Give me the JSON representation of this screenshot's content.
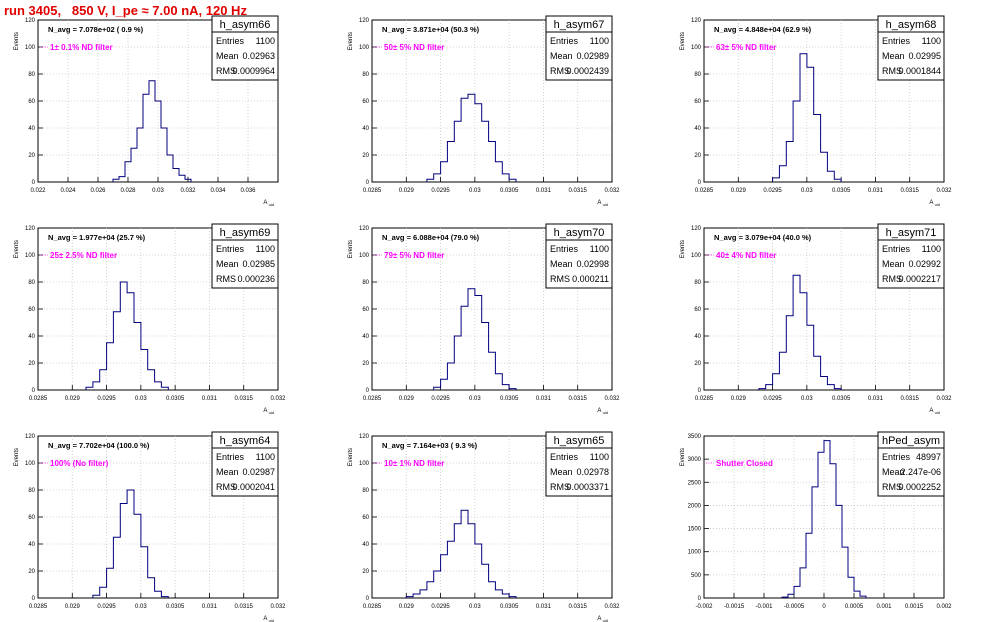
{
  "page": {
    "title": "run 3405,   850 V, I_pe ≈ 7.00 nA, 120 Hz"
  },
  "colors": {
    "title": "#e00000",
    "histogram": "#00007f",
    "filter_text": "#ff00ff",
    "grid": "#c8c8c8"
  },
  "chart_data": [
    {
      "type": "histogram",
      "stats": {
        "name": "h_asym66",
        "entries": "1100",
        "mean": "0.02963",
        "rms": "0.0009964"
      },
      "label": "N_avg = 7.078e+02 ( 0.9 %)",
      "filter": "1± 0.1% ND filter",
      "xlabel": "A_uid",
      "ylabel": "Events",
      "xlim": [
        0.022,
        0.038
      ],
      "ylim": [
        0,
        120
      ],
      "xticks": [
        "0.022",
        "0.024",
        "0.026",
        "0.028",
        "0.03",
        "0.032",
        "0.034",
        "0.036"
      ],
      "yticks": [
        "0",
        "20",
        "40",
        "60",
        "80",
        "100",
        "120"
      ],
      "centers": [
        0.0272,
        0.0276,
        0.028,
        0.0284,
        0.0288,
        0.0292,
        0.0296,
        0.03,
        0.0304,
        0.0308,
        0.0312,
        0.0316,
        0.032
      ],
      "values": [
        2,
        4,
        15,
        25,
        40,
        65,
        75,
        60,
        40,
        20,
        10,
        5,
        2
      ]
    },
    {
      "type": "histogram",
      "stats": {
        "name": "h_asym67",
        "entries": "1100",
        "mean": "0.02989",
        "rms": "0.0002439"
      },
      "label": "N_avg = 3.871e+04 (50.3 %)",
      "filter": "50± 5% ND filter",
      "xlabel": "A_uid",
      "ylabel": "Events",
      "xlim": [
        0.0285,
        0.032
      ],
      "ylim": [
        0,
        120
      ],
      "xticks": [
        "0.0285",
        "0.029",
        "0.0295",
        "0.03",
        "0.0305",
        "0.031",
        "0.0315",
        "0.032"
      ],
      "yticks": [
        "0",
        "20",
        "40",
        "60",
        "80",
        "100",
        "120"
      ],
      "centers": [
        0.02935,
        0.02945,
        0.02955,
        0.02965,
        0.02975,
        0.02985,
        0.02995,
        0.03005,
        0.03015,
        0.03025,
        0.03035,
        0.03045,
        0.03055
      ],
      "values": [
        2,
        6,
        15,
        30,
        45,
        62,
        65,
        58,
        45,
        30,
        15,
        6,
        2
      ]
    },
    {
      "type": "histogram",
      "stats": {
        "name": "h_asym68",
        "entries": "1100",
        "mean": "0.02995",
        "rms": "0.0001844"
      },
      "label": "N_avg = 4.848e+04 (62.9 %)",
      "filter": "63± 5% ND filter",
      "xlabel": "A_uid",
      "ylabel": "Events",
      "xlim": [
        0.0285,
        0.032
      ],
      "ylim": [
        0,
        120
      ],
      "xticks": [
        "0.0285",
        "0.029",
        "0.0295",
        "0.03",
        "0.0305",
        "0.031",
        "0.0315",
        "0.032"
      ],
      "yticks": [
        "0",
        "20",
        "40",
        "60",
        "80",
        "100",
        "120"
      ],
      "centers": [
        0.02955,
        0.02965,
        0.02975,
        0.02985,
        0.02995,
        0.03005,
        0.03015,
        0.03025,
        0.03035,
        0.03045
      ],
      "values": [
        3,
        12,
        30,
        60,
        95,
        85,
        50,
        22,
        8,
        2
      ]
    },
    {
      "type": "histogram",
      "stats": {
        "name": "h_asym69",
        "entries": "1100",
        "mean": "0.02985",
        "rms": "0.000236"
      },
      "label": "N_avg = 1.977e+04 (25.7 %)",
      "filter": "25± 2.5% ND filter",
      "xlabel": "A_uid",
      "ylabel": "Events",
      "xlim": [
        0.0285,
        0.032
      ],
      "ylim": [
        0,
        120
      ],
      "xticks": [
        "0.0285",
        "0.029",
        "0.0295",
        "0.03",
        "0.0305",
        "0.031",
        "0.0315",
        "0.032"
      ],
      "yticks": [
        "0",
        "20",
        "40",
        "60",
        "80",
        "100",
        "120"
      ],
      "centers": [
        0.02925,
        0.02935,
        0.02945,
        0.02955,
        0.02965,
        0.02975,
        0.02985,
        0.02995,
        0.03005,
        0.03015,
        0.03025,
        0.03035
      ],
      "values": [
        2,
        6,
        15,
        35,
        58,
        80,
        72,
        50,
        30,
        15,
        6,
        2
      ]
    },
    {
      "type": "histogram",
      "stats": {
        "name": "h_asym70",
        "entries": "1100",
        "mean": "0.02998",
        "rms": "0.000211"
      },
      "label": "N_avg = 6.088e+04 (79.0 %)",
      "filter": "79± 5% ND filter",
      "xlabel": "A_uid",
      "ylabel": "Events",
      "xlim": [
        0.0285,
        0.032
      ],
      "ylim": [
        0,
        120
      ],
      "xticks": [
        "0.0285",
        "0.029",
        "0.0295",
        "0.03",
        "0.0305",
        "0.031",
        "0.0315",
        "0.032"
      ],
      "yticks": [
        "0",
        "20",
        "40",
        "60",
        "80",
        "100",
        "120"
      ],
      "centers": [
        0.02945,
        0.02955,
        0.02965,
        0.02975,
        0.02985,
        0.02995,
        0.03005,
        0.03015,
        0.03025,
        0.03035,
        0.03045,
        0.03055
      ],
      "values": [
        2,
        8,
        20,
        40,
        62,
        75,
        70,
        50,
        28,
        12,
        4,
        1
      ]
    },
    {
      "type": "histogram",
      "stats": {
        "name": "h_asym71",
        "entries": "1100",
        "mean": "0.02992",
        "rms": "0.0002217"
      },
      "label": "N_avg = 3.079e+04 (40.0 %)",
      "filter": "40± 4% ND filter",
      "xlabel": "A_uid",
      "ylabel": "Events",
      "xlim": [
        0.0285,
        0.032
      ],
      "ylim": [
        0,
        120
      ],
      "xticks": [
        "0.0285",
        "0.029",
        "0.0295",
        "0.03",
        "0.0305",
        "0.031",
        "0.0315",
        "0.032"
      ],
      "yticks": [
        "0",
        "20",
        "40",
        "60",
        "80",
        "100",
        "120"
      ],
      "centers": [
        0.02935,
        0.02945,
        0.02955,
        0.02965,
        0.02975,
        0.02985,
        0.02995,
        0.03005,
        0.03015,
        0.03025,
        0.03035,
        0.03045
      ],
      "values": [
        1,
        4,
        12,
        28,
        55,
        85,
        72,
        48,
        25,
        10,
        4,
        1
      ]
    },
    {
      "type": "histogram",
      "stats": {
        "name": "h_asym64",
        "entries": "1100",
        "mean": "0.02987",
        "rms": "0.0002041"
      },
      "label": "N_avg = 7.702e+04 (100.0 %)",
      "filter": "100% (No filter)",
      "xlabel": "A_uid",
      "ylabel": "Events",
      "xlim": [
        0.0285,
        0.032
      ],
      "ylim": [
        0,
        120
      ],
      "xticks": [
        "0.0285",
        "0.029",
        "0.0295",
        "0.03",
        "0.0305",
        "0.031",
        "0.0315",
        "0.032"
      ],
      "yticks": [
        "0",
        "20",
        "40",
        "60",
        "80",
        "100",
        "120"
      ],
      "centers": [
        0.02935,
        0.02945,
        0.02955,
        0.02965,
        0.02975,
        0.02985,
        0.02995,
        0.03005,
        0.03015,
        0.03025,
        0.03035
      ],
      "values": [
        2,
        8,
        22,
        45,
        70,
        80,
        62,
        38,
        15,
        5,
        1
      ]
    },
    {
      "type": "histogram",
      "stats": {
        "name": "h_asym65",
        "entries": "1100",
        "mean": "0.02978",
        "rms": "0.0003371"
      },
      "label": "N_avg = 7.164e+03 ( 9.3 %)",
      "filter": "10± 1% ND filter",
      "xlabel": "A_uid",
      "ylabel": "Events",
      "xlim": [
        0.0285,
        0.032
      ],
      "ylim": [
        0,
        120
      ],
      "xticks": [
        "0.0285",
        "0.029",
        "0.0295",
        "0.03",
        "0.0305",
        "0.031",
        "0.0315",
        "0.032"
      ],
      "yticks": [
        "0",
        "20",
        "40",
        "60",
        "80",
        "100",
        "120"
      ],
      "centers": [
        0.02905,
        0.02915,
        0.02925,
        0.02935,
        0.02945,
        0.02955,
        0.02965,
        0.02975,
        0.02985,
        0.02995,
        0.03005,
        0.03015,
        0.03025,
        0.03035,
        0.03045,
        0.03055
      ],
      "values": [
        1,
        3,
        6,
        12,
        20,
        32,
        42,
        55,
        65,
        55,
        40,
        25,
        12,
        6,
        3,
        1
      ]
    },
    {
      "type": "histogram",
      "stats": {
        "name": "hPed_asym",
        "entries": "48997",
        "mean": "2.247e-06",
        "rms": "0.0002252"
      },
      "label": "",
      "filter": "Shutter Closed",
      "xlabel": "",
      "ylabel": "Events",
      "xlim": [
        -0.002,
        0.002
      ],
      "ylim": [
        0,
        3500
      ],
      "xticks": [
        "-0.002",
        "-0.0015",
        "-0.001",
        "-0.0005",
        "0",
        "0.0005",
        "0.001",
        "0.0015",
        "0.002"
      ],
      "yticks": [
        "0",
        "500",
        "1000",
        "1500",
        "2000",
        "2500",
        "3000",
        "3500"
      ],
      "centers": [
        -0.00065,
        -0.00055,
        -0.00045,
        -0.00035,
        -0.00025,
        -0.00015,
        -5e-05,
        5e-05,
        0.00015,
        0.00025,
        0.00035,
        0.00045,
        0.00055,
        0.00065
      ],
      "values": [
        20,
        80,
        250,
        650,
        1400,
        2400,
        3150,
        3400,
        2900,
        2000,
        1100,
        450,
        150,
        40
      ]
    }
  ]
}
